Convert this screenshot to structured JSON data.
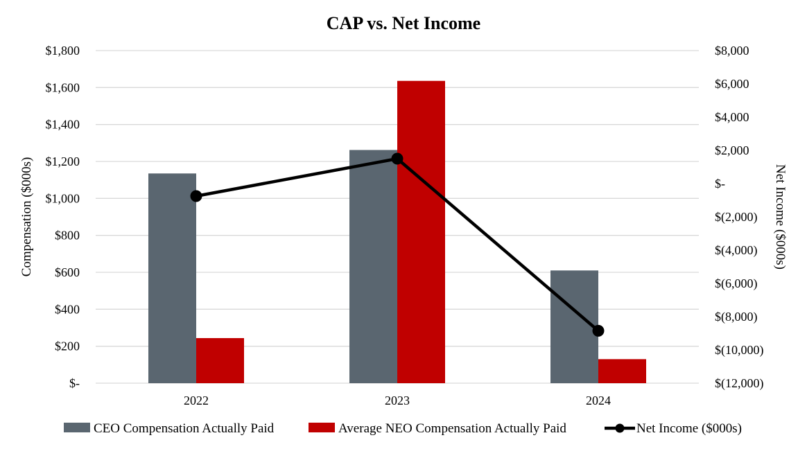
{
  "chart_data": {
    "type": "bar",
    "title": "CAP vs. Net Income",
    "categories": [
      "2022",
      "2023",
      "2024"
    ],
    "series": [
      {
        "name": "CEO Compensation Actually Paid",
        "axis": "left",
        "kind": "bar",
        "color": "#5a6670",
        "values": [
          1135,
          1262,
          610
        ]
      },
      {
        "name": "Average NEO Compensation Actually Paid",
        "axis": "left",
        "kind": "bar",
        "color": "#c00000",
        "values": [
          244,
          1636,
          130
        ]
      },
      {
        "name": "Net Income ($000s)",
        "axis": "right",
        "kind": "line",
        "color": "#000000",
        "values": [
          -750,
          1500,
          -8850
        ]
      }
    ],
    "ylabel": "Compensation ($000s)",
    "y2label": "Net Income ($000s)",
    "ylim": [
      0,
      1800
    ],
    "y2lim": [
      -12000,
      8000
    ],
    "yticks": [
      {
        "value": 0,
        "label": "$-"
      },
      {
        "value": 200,
        "label": "$200"
      },
      {
        "value": 400,
        "label": "$400"
      },
      {
        "value": 600,
        "label": "$600"
      },
      {
        "value": 800,
        "label": "$800"
      },
      {
        "value": 1000,
        "label": "$1,000"
      },
      {
        "value": 1200,
        "label": "$1,200"
      },
      {
        "value": 1400,
        "label": "$1,400"
      },
      {
        "value": 1600,
        "label": "$1,600"
      },
      {
        "value": 1800,
        "label": "$1,800"
      }
    ],
    "y2ticks": [
      {
        "value": -12000,
        "label": "$(12,000)"
      },
      {
        "value": -10000,
        "label": "$(10,000)"
      },
      {
        "value": -8000,
        "label": "$(8,000)"
      },
      {
        "value": -6000,
        "label": "$(6,000)"
      },
      {
        "value": -4000,
        "label": "$(4,000)"
      },
      {
        "value": -2000,
        "label": "$(2,000)"
      },
      {
        "value": 0,
        "label": "$-"
      },
      {
        "value": 2000,
        "label": "$2,000"
      },
      {
        "value": 4000,
        "label": "$4,000"
      },
      {
        "value": 6000,
        "label": "$6,000"
      },
      {
        "value": 8000,
        "label": "$8,000"
      }
    ],
    "grid": true,
    "legend": "bottom"
  }
}
